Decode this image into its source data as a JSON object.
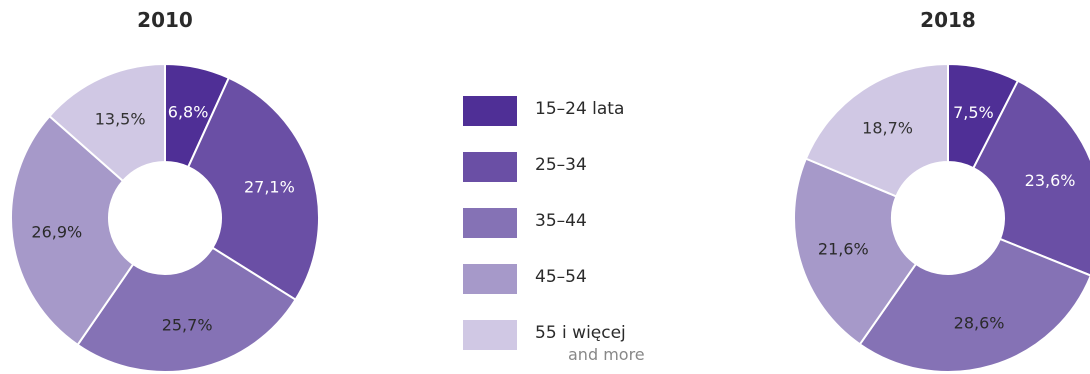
{
  "colors": {
    "segments": [
      "#4f2f96",
      "#6a4fa5",
      "#8572b5",
      "#a699c9",
      "#d0c8e4"
    ],
    "text": "#333333",
    "sub_text": "#888888"
  },
  "legend": {
    "items": [
      {
        "label": "15–24 lata",
        "sublabel": ""
      },
      {
        "label": "25–34",
        "sublabel": ""
      },
      {
        "label": "35–44",
        "sublabel": ""
      },
      {
        "label": "45–54",
        "sublabel": ""
      },
      {
        "label": "55 i więcej",
        "sublabel": "and more"
      }
    ]
  },
  "chart_data": [
    {
      "type": "pie",
      "title": "2010",
      "categories": [
        "15–24 lata",
        "25–34",
        "35–44",
        "45–54",
        "55 i więcej"
      ],
      "values": [
        6.8,
        27.1,
        25.7,
        26.9,
        13.5
      ],
      "labels": [
        "6,8%",
        "27,1%",
        "25,7%",
        "26,9%",
        "13,5%"
      ]
    },
    {
      "type": "pie",
      "title": "2018",
      "categories": [
        "15–24 lata",
        "25–34",
        "35–44",
        "45–54",
        "55 i więcej"
      ],
      "values": [
        7.5,
        23.6,
        28.6,
        21.6,
        18.7
      ],
      "labels": [
        "7,5%",
        "23,6%",
        "28,6%",
        "21,6%",
        "18,7%"
      ]
    }
  ]
}
